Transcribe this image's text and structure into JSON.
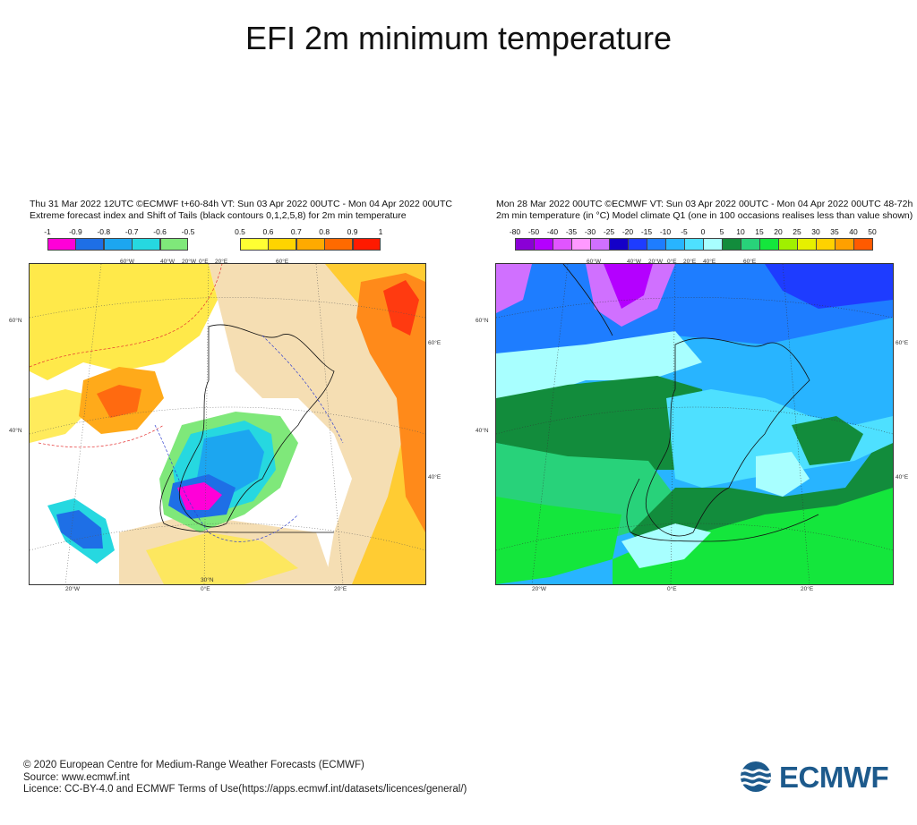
{
  "page": {
    "title": "EFI 2m minimum temperature"
  },
  "left_panel": {
    "header_line1": "Thu 31 Mar 2022 12UTC ©ECMWF t+60-84h  VT: Sun 03 Apr 2022 00UTC - Mon 04 Apr 2022 00UTC",
    "header_line2": "Extreme forecast index and Shift of Tails (black contours 0,1,2,5,8) for 2m min temperature",
    "scale_neg": {
      "labels": [
        "-1",
        "-0.9",
        "-0.8",
        "-0.7",
        "-0.6",
        "-0.5"
      ],
      "colors": [
        "#ff00d8",
        "#1e6fe6",
        "#1ca6f0",
        "#26d8e0",
        "#7fe87a"
      ]
    },
    "scale_pos": {
      "labels": [
        "0.5",
        "0.6",
        "0.7",
        "0.8",
        "0.9",
        "1"
      ],
      "colors": [
        "#ffff33",
        "#ffd400",
        "#ffaa00",
        "#ff6a00",
        "#ff1a00"
      ]
    },
    "axis_top": [
      "60°W",
      "40°W",
      "20°W",
      "0°E",
      "20°E",
      "60°E"
    ],
    "axis_bottom": [
      "20°W",
      "0°E",
      "20°E"
    ],
    "axis_left": [
      "60°N",
      "40°N"
    ],
    "axis_right": [
      "60°E",
      "40°E"
    ],
    "axis_mid": [
      "30°N"
    ]
  },
  "right_panel": {
    "header_line1": "Mon 28 Mar 2022 00UTC ©ECMWF VT: Sun 03 Apr 2022 00UTC - Mon 04 Apr 2022 00UTC   48-72h",
    "header_line2": "2m min temperature (in °C)  Model climate Q1  (one in 100 occasions realises less than value shown)",
    "scale": {
      "labels": [
        "-80",
        "-50",
        "-40",
        "-35",
        "-30",
        "-25",
        "-20",
        "-15",
        "-10",
        "-5",
        "0",
        "5",
        "10",
        "15",
        "20",
        "25",
        "30",
        "35",
        "40",
        "50"
      ],
      "colors": [
        "#8a00d6",
        "#b400ff",
        "#e055ff",
        "#ff99ff",
        "#d070ff",
        "#1400c8",
        "#1e3cff",
        "#1e7dff",
        "#28b4ff",
        "#4ee0ff",
        "#a8ffff",
        "#128c3c",
        "#28d27a",
        "#14e63c",
        "#a0f000",
        "#e6f000",
        "#ffd200",
        "#ffa000",
        "#ff5a00"
      ]
    },
    "axis_top": [
      "60°W",
      "40°W",
      "20°W",
      "0°E",
      "20°E",
      "40°E",
      "60°E"
    ],
    "axis_bottom": [
      "20°W",
      "0°E",
      "20°E"
    ],
    "axis_left": [
      "60°N",
      "40°N"
    ],
    "axis_right": [
      "60°E",
      "40°E"
    ]
  },
  "footer": {
    "line1": "© 2020 European Centre for Medium-Range Weather Forecasts (ECMWF)",
    "line2": "Source: www.ecmwf.int",
    "line3": "Licence: CC-BY-4.0 and ECMWF Terms of Use(https://apps.ecmwf.int/datasets/licences/general/)",
    "logo_text": "ECMWF"
  }
}
